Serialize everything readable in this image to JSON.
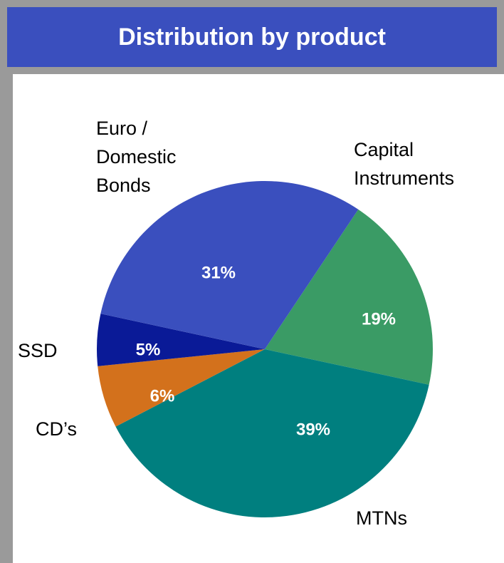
{
  "chart_data": {
    "type": "pie",
    "title": "Distribution by product",
    "categories": [
      "Capital\nInstruments",
      "MTNs",
      "CD’s",
      "SSD",
      "Euro /\nDomestic\nBonds"
    ],
    "values": [
      19,
      39,
      6,
      5,
      31
    ],
    "value_labels": [
      "19%",
      "39%",
      "6%",
      "5%",
      "31%"
    ],
    "colors": [
      "#3a9b65",
      "#007f7f",
      "#d3711c",
      "#0a1a97",
      "#3a4fbe"
    ]
  }
}
